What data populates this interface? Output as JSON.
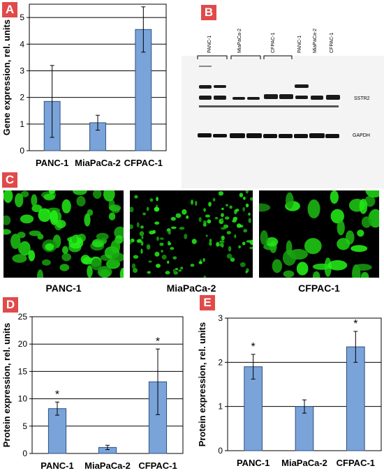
{
  "panels": {
    "A": {
      "letter": "A"
    },
    "B": {
      "letter": "B"
    },
    "C": {
      "letter": "C"
    },
    "D": {
      "letter": "D"
    },
    "E": {
      "letter": "E"
    }
  },
  "western_blot": {
    "lane_labels": [
      "PANC-1",
      "MiaPaCa-2",
      "CFPAC-1",
      "PANC-1",
      "MiaPaCa-2",
      "CFPAC-1"
    ],
    "band_labels": {
      "sstr2": "SSTR2",
      "gapdh": "GAPDH"
    }
  },
  "micrographs": {
    "labels": [
      "PANC-1",
      "MiaPaCa-2",
      "CFPAC-1"
    ]
  },
  "chart_data": [
    {
      "id": "A",
      "type": "bar",
      "categories": [
        "PANC-1",
        "MiaPaCa-2",
        "CFPAC-1"
      ],
      "values": [
        1.85,
        1.05,
        4.55
      ],
      "errors": [
        1.35,
        0.28,
        0.85
      ],
      "significance": [
        "",
        "",
        "*"
      ],
      "title": "",
      "xlabel": "",
      "ylabel": "Gene expression, rel. units",
      "ylim": [
        0,
        5.5
      ],
      "yticks": [
        0,
        1,
        2,
        3,
        4,
        5
      ],
      "grid": true,
      "bar_color": "#7aa3d9"
    },
    {
      "id": "D",
      "type": "bar",
      "categories": [
        "PANC-1",
        "MiaPaCa-2",
        "CFPAC-1"
      ],
      "values": [
        8.2,
        1.1,
        13.1
      ],
      "errors": [
        1.2,
        0.4,
        6.0
      ],
      "significance": [
        "*",
        "",
        "*"
      ],
      "title": "",
      "xlabel": "",
      "ylabel": "Protein expression, rel. units",
      "ylim": [
        0,
        25
      ],
      "yticks": [
        0,
        5,
        10,
        15,
        20,
        25
      ],
      "grid": true,
      "bar_color": "#7aa3d9"
    },
    {
      "id": "E",
      "type": "bar",
      "categories": [
        "PANC-1",
        "MiaPaCa-2",
        "CFPAC-1"
      ],
      "values": [
        1.9,
        1.0,
        2.35
      ],
      "errors": [
        0.28,
        0.15,
        0.35
      ],
      "significance": [
        "*",
        "",
        "*"
      ],
      "title": "",
      "xlabel": "",
      "ylabel": "Protein expression, rel. units",
      "ylim": [
        0,
        3
      ],
      "yticks": [
        0,
        1,
        2,
        3
      ],
      "grid": true,
      "bar_color": "#7aa3d9"
    }
  ]
}
